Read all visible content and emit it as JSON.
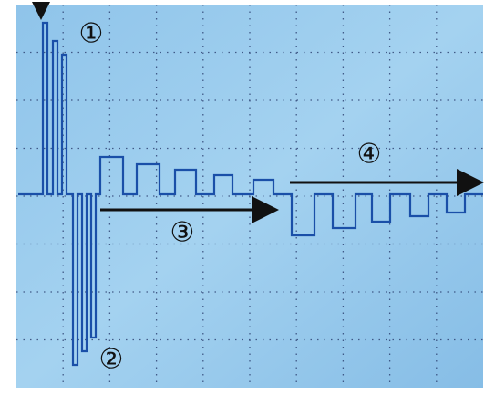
{
  "annotations": [
    {
      "label": "①"
    },
    {
      "label": "②"
    },
    {
      "label": "③"
    },
    {
      "label": "④"
    }
  ]
}
